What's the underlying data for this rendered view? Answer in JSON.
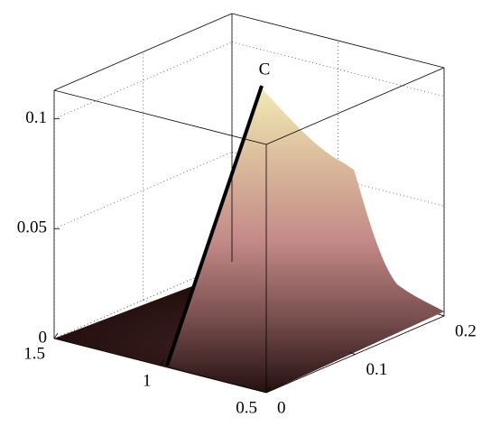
{
  "chart_data": {
    "type": "surface",
    "annotation": "C",
    "xlim": [
      1.5,
      0.5
    ],
    "xticks": [
      1.5,
      1,
      0.5
    ],
    "ylim": [
      0,
      0.2
    ],
    "yticks": [
      0,
      0.1,
      0.2
    ],
    "zlim": [
      0,
      0.113
    ],
    "zticks": [
      0,
      0.05,
      0.1
    ],
    "grid": true
  }
}
